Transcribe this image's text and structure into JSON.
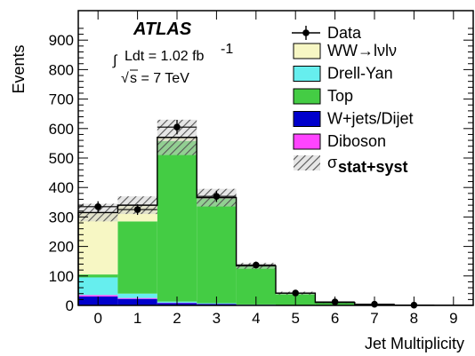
{
  "chart_data": {
    "type": "bar",
    "stacked": true,
    "xlabel": "Jet Multiplicity",
    "ylabel": "Events",
    "xlim": [
      -0.5,
      9.5
    ],
    "ylim": [
      0,
      1000
    ],
    "categories": [
      "0",
      "1",
      "2",
      "3",
      "4",
      "5",
      "6",
      "7",
      "8",
      "9"
    ],
    "yticks": [
      "0",
      "100",
      "200",
      "300",
      "400",
      "500",
      "600",
      "700",
      "800",
      "900"
    ],
    "series": [
      {
        "name": "W+jets/Dijet",
        "color": "#0000cc",
        "values": [
          30,
          22,
          8,
          5,
          2,
          1,
          0,
          0,
          0,
          0
        ]
      },
      {
        "name": "Diboson",
        "color": "#ff44ff",
        "values": [
          5,
          3,
          1,
          0.5,
          0.2,
          0,
          0,
          0,
          0,
          0
        ]
      },
      {
        "name": "Drell-Yan",
        "color": "#66eeee",
        "values": [
          60,
          15,
          4,
          2,
          1,
          0.5,
          0,
          0,
          0,
          0
        ]
      },
      {
        "name": "Top",
        "color": "#44cc44",
        "values": [
          10,
          245,
          545,
          355,
          130,
          40,
          10,
          3,
          1,
          0.5
        ]
      },
      {
        "name": "WW→lνlν",
        "color": "#f7f7c4",
        "values": [
          210,
          55,
          12,
          3,
          1,
          0,
          0,
          0,
          0,
          0
        ]
      }
    ],
    "data": {
      "name": "Data",
      "values": [
        335,
        325,
        605,
        370,
        137,
        42,
        12,
        4,
        1,
        0
      ]
    },
    "uncertainty": {
      "name": "σstat+syst",
      "half_width": [
        30,
        30,
        60,
        30,
        10,
        5,
        2,
        1,
        0,
        0
      ]
    },
    "legend_position": "top-right",
    "grid": false
  },
  "annotations": {
    "experiment": "ATLAS",
    "integral_sign": "∫",
    "lumi_text": "Ldt = 1.02 fb",
    "lumi_exponent": "-1",
    "sqrt_sign": "√",
    "energy_text": "s = 7 TeV"
  },
  "legend": {
    "data_label": "Data",
    "sigma_symbol": "σ",
    "sigma_subscript": "stat+syst"
  },
  "colors": {
    "frame": "#000000",
    "hatch": "#444444"
  }
}
